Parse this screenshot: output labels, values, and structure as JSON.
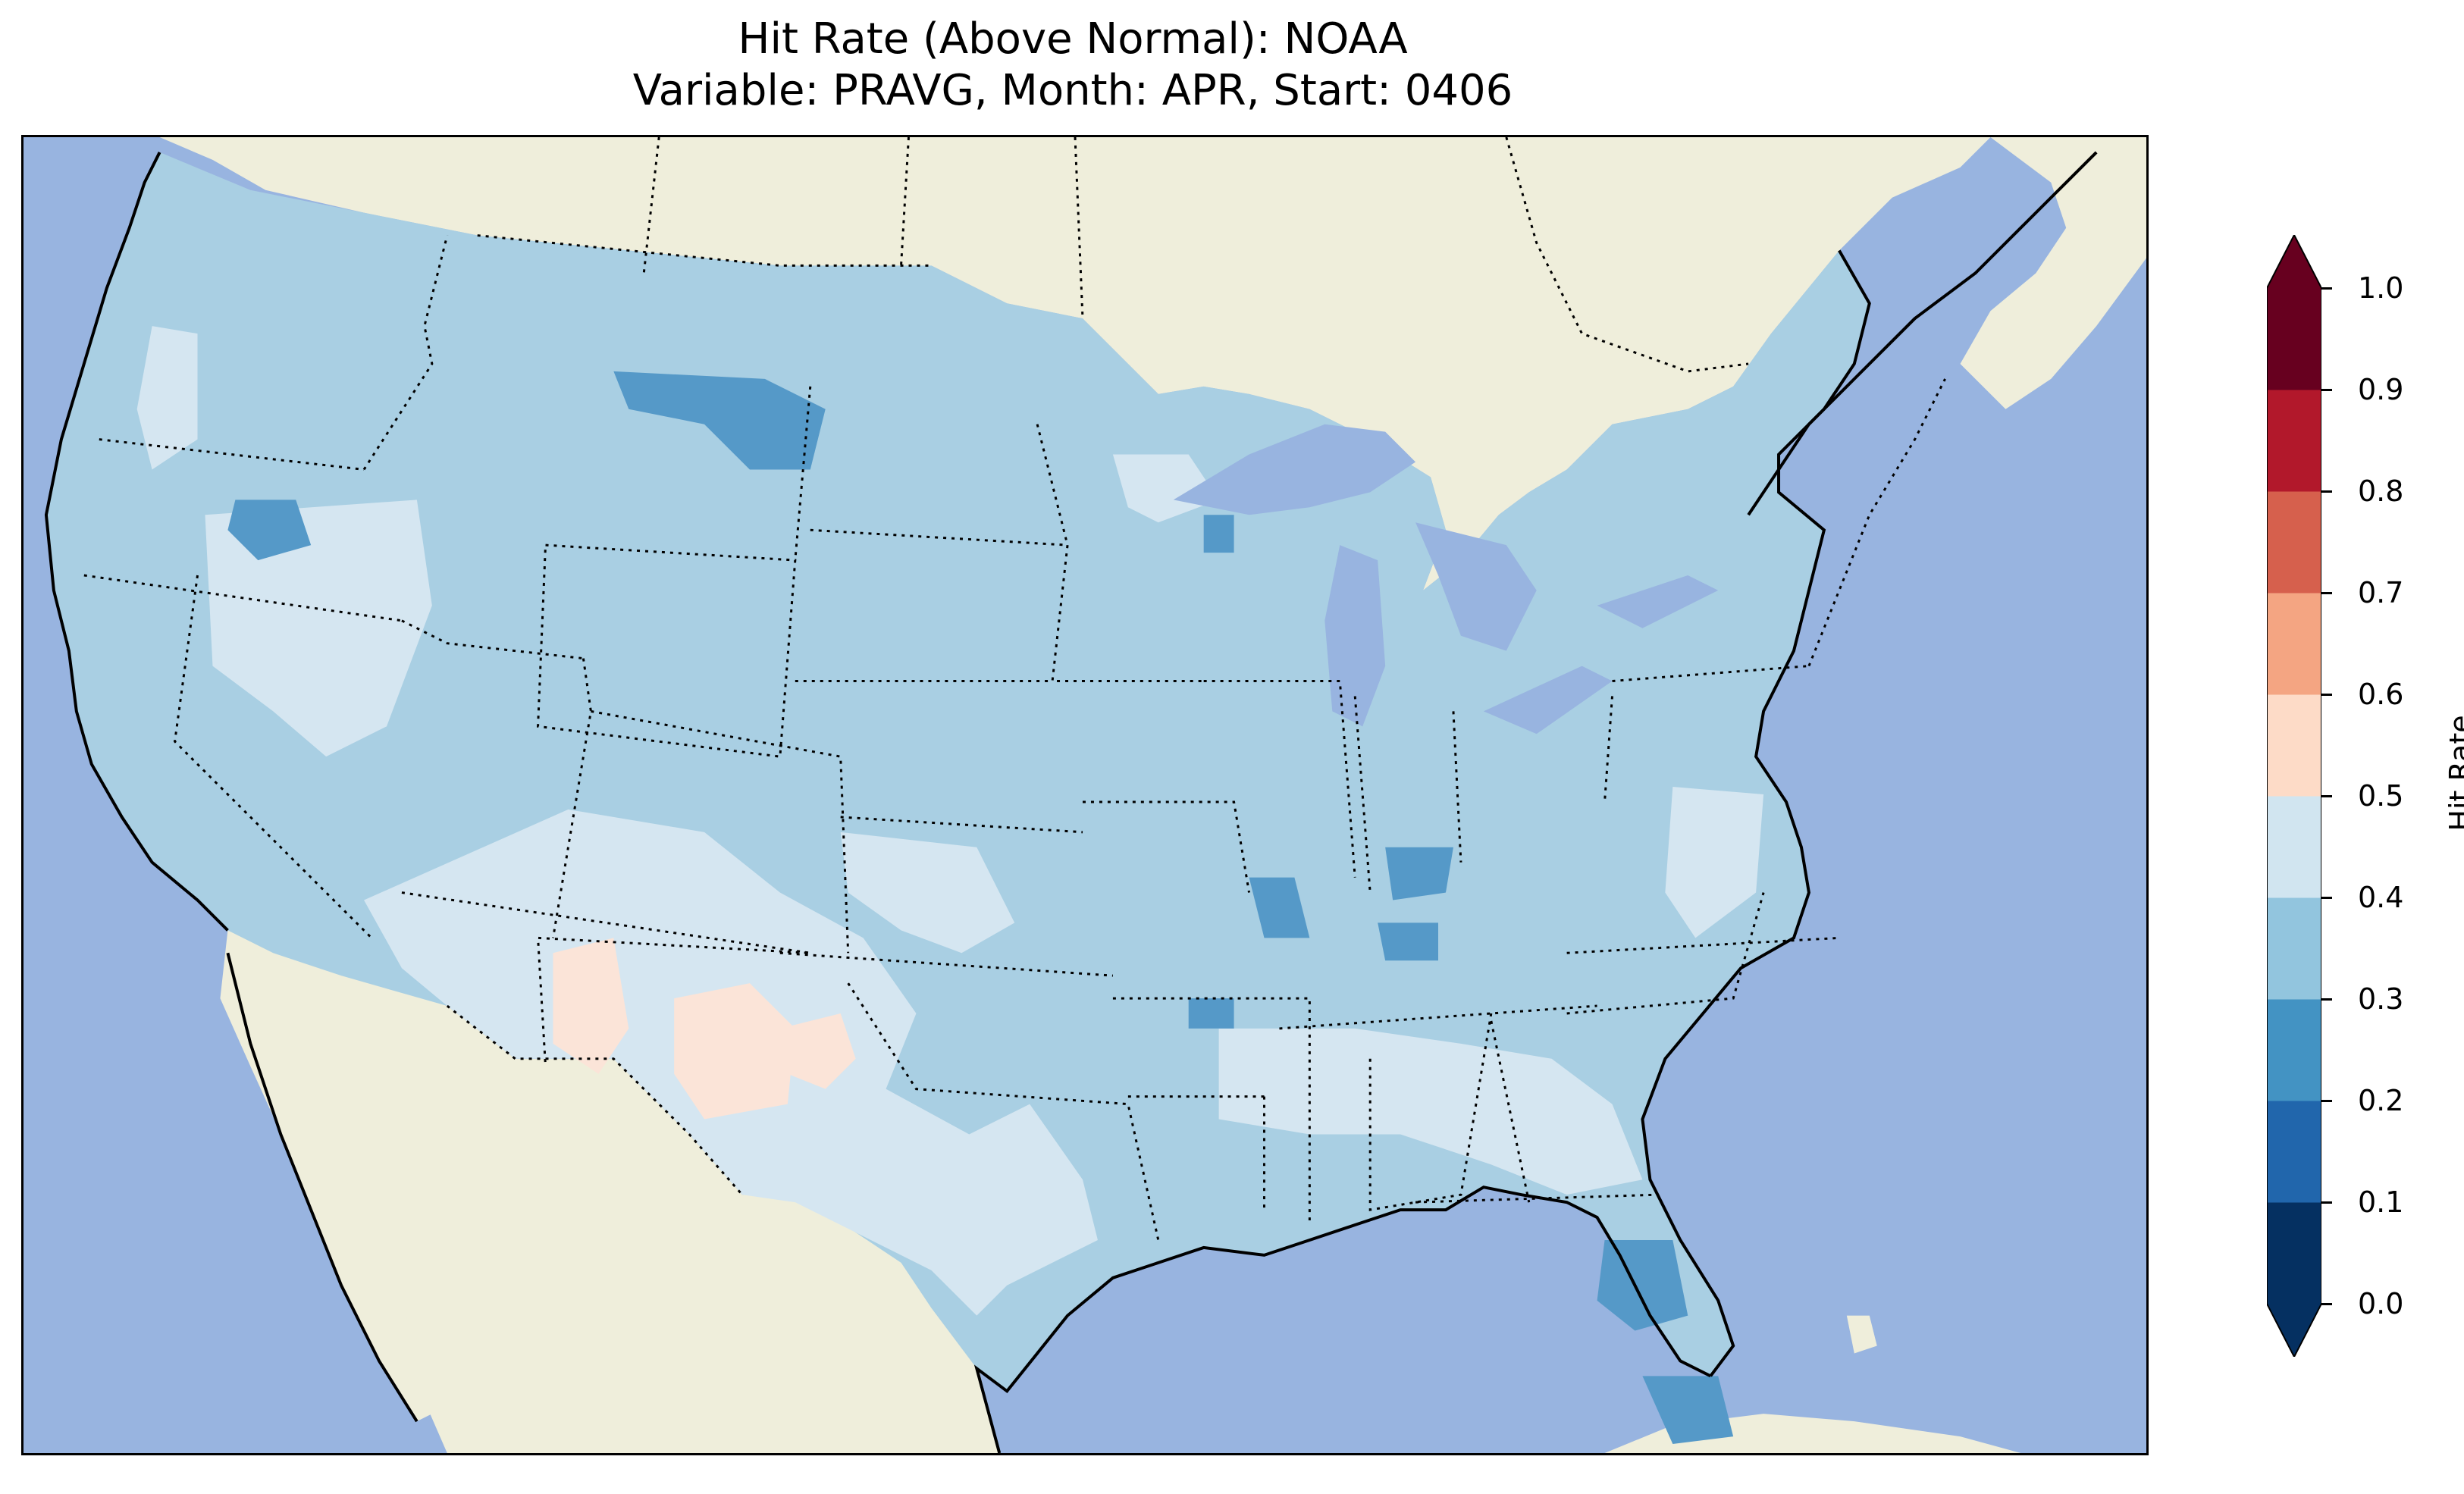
{
  "title": {
    "line1": "Hit Rate (Above Normal): NOAA",
    "line2": "Variable: PRAVG, Month: APR, Start: 0406"
  },
  "colorbar": {
    "label": "Hit Rate",
    "ticks": [
      "0.0",
      "0.1",
      "0.2",
      "0.3",
      "0.4",
      "0.5",
      "0.6",
      "0.7",
      "0.8",
      "0.9",
      "1.0"
    ],
    "bins": [
      {
        "from": 0.0,
        "to": 0.1,
        "color": "#053061"
      },
      {
        "from": 0.1,
        "to": 0.2,
        "color": "#2166ac"
      },
      {
        "from": 0.2,
        "to": 0.3,
        "color": "#4393c3"
      },
      {
        "from": 0.3,
        "to": 0.4,
        "color": "#92c5de"
      },
      {
        "from": 0.4,
        "to": 0.5,
        "color": "#d1e5f0"
      },
      {
        "from": 0.5,
        "to": 0.6,
        "color": "#fddbc7"
      },
      {
        "from": 0.6,
        "to": 0.7,
        "color": "#f4a582"
      },
      {
        "from": 0.7,
        "to": 0.8,
        "color": "#d6604d"
      },
      {
        "from": 0.8,
        "to": 0.9,
        "color": "#b2182b"
      },
      {
        "from": 0.9,
        "to": 1.0,
        "color": "#67001f"
      }
    ],
    "under_color": "#053061",
    "over_color": "#67001f"
  },
  "map_colors": {
    "ocean": "#98b4e0",
    "land": "#efeedb",
    "lake": "#98b4e0"
  }
}
